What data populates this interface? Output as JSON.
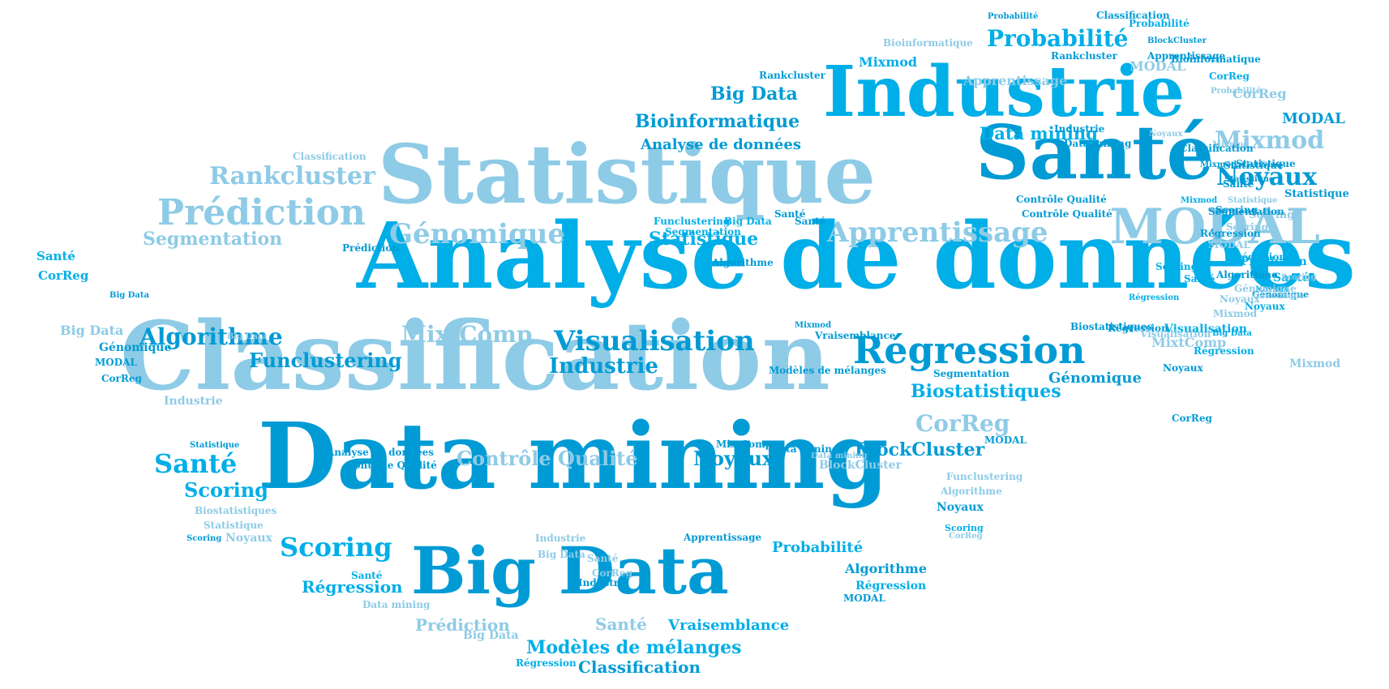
{
  "palette": {
    "light": "#8ecbe6",
    "mid": "#00aee8",
    "deep": "#009bd5",
    "bright": "#00b9f2"
  },
  "words": [
    {
      "text": "Analyse de données",
      "color": "mid"
    },
    {
      "text": "Classification",
      "color": "light"
    },
    {
      "text": "Data mining",
      "color": "deep"
    },
    {
      "text": "Statistique",
      "color": "light"
    },
    {
      "text": "Industrie",
      "color": "mid"
    },
    {
      "text": "Santé",
      "color": "deep"
    },
    {
      "text": "Big Data",
      "color": "deep"
    },
    {
      "text": "MODAL",
      "color": "light"
    },
    {
      "text": "Prédiction",
      "color": "light"
    },
    {
      "text": "Régression",
      "color": "deep"
    },
    {
      "text": "Génomique",
      "color": "light"
    },
    {
      "text": "Visualisation",
      "color": "deep"
    },
    {
      "text": "Apprentissage",
      "color": "light"
    },
    {
      "text": "Rankcluster",
      "color": "light"
    },
    {
      "text": "Probabilité",
      "color": "mid"
    },
    {
      "text": "Noyaux",
      "color": "deep"
    },
    {
      "text": "Mixmod",
      "color": "light"
    },
    {
      "text": "Algorithme",
      "color": "deep"
    },
    {
      "text": "MixtComp",
      "color": "light"
    },
    {
      "text": "Funclustering",
      "color": "deep"
    },
    {
      "text": "Industrie",
      "color": "deep"
    },
    {
      "text": "CorReg",
      "color": "light"
    },
    {
      "text": "Biostatistiques",
      "color": "mid"
    },
    {
      "text": "BlockCluster",
      "color": "deep"
    },
    {
      "text": "Scoring",
      "color": "mid"
    },
    {
      "text": "Santé",
      "color": "mid"
    },
    {
      "text": "Contrôle Qualité",
      "color": "light"
    },
    {
      "text": "Noyaux",
      "color": "deep"
    },
    {
      "text": "Scoring",
      "color": "mid"
    },
    {
      "text": "Segmentation",
      "color": "light"
    },
    {
      "text": "Statistique",
      "color": "mid"
    },
    {
      "text": "Bioinformatique",
      "color": "deep"
    },
    {
      "text": "Big Data",
      "color": "deep"
    },
    {
      "text": "Data mining",
      "color": "mid"
    },
    {
      "text": "Analyse de données",
      "color": "deep"
    },
    {
      "text": "Mixmod",
      "color": "mid"
    },
    {
      "text": "Modèles de mélanges",
      "color": "mid"
    },
    {
      "text": "Classification",
      "color": "deep"
    },
    {
      "text": "Vraisemblance",
      "color": "mid"
    },
    {
      "text": "Probabilité",
      "color": "mid"
    },
    {
      "text": "Régression",
      "color": "mid"
    },
    {
      "text": "Prédiction",
      "color": "light"
    },
    {
      "text": "Santé",
      "color": "light"
    },
    {
      "text": "Génomique",
      "color": "deep"
    },
    {
      "text": "MixtComp",
      "color": "light"
    },
    {
      "text": "Algorithme",
      "color": "deep"
    },
    {
      "text": "MODAL",
      "color": "light"
    },
    {
      "text": "Apprentissage",
      "color": "light"
    },
    {
      "text": "Bioinformatique",
      "color": "light"
    },
    {
      "text": "Rankcluster",
      "color": "deep"
    },
    {
      "text": "Big Data",
      "color": "light"
    },
    {
      "text": "CorReg",
      "color": "light"
    },
    {
      "text": "Scoring",
      "color": "light"
    },
    {
      "text": "Segmentation",
      "color": "mid"
    },
    {
      "text": "Statistique",
      "color": "deep"
    },
    {
      "text": "Visualisation",
      "color": "mid"
    },
    {
      "text": "Prédiction",
      "color": "mid"
    },
    {
      "text": "Biostatistiques",
      "color": "deep"
    },
    {
      "text": "Santé",
      "color": "mid"
    },
    {
      "text": "Noyaux",
      "color": "mid"
    },
    {
      "text": "Contrôle Qualité",
      "color": "deep"
    },
    {
      "text": "Classification",
      "color": "deep"
    },
    {
      "text": "Régression",
      "color": "deep"
    },
    {
      "text": "Algorithme",
      "color": "deep"
    },
    {
      "text": "Industrie",
      "color": "light"
    },
    {
      "text": "MODAL",
      "color": "deep"
    },
    {
      "text": "Mixmod",
      "color": "light"
    },
    {
      "text": "Santé",
      "color": "mid"
    },
    {
      "text": "CorReg",
      "color": "mid"
    },
    {
      "text": "Génomique",
      "color": "deep"
    },
    {
      "text": "Statistique",
      "color": "light"
    },
    {
      "text": "Vraisemblance",
      "color": "deep"
    },
    {
      "text": "BlockCluster",
      "color": "light"
    },
    {
      "text": "Funclustering",
      "color": "light"
    },
    {
      "text": "Algorithme",
      "color": "light"
    },
    {
      "text": "Noyaux",
      "color": "deep"
    },
    {
      "text": "Scoring",
      "color": "mid"
    },
    {
      "text": "Probabilité",
      "color": "mid"
    },
    {
      "text": "Data mining",
      "color": "light"
    },
    {
      "text": "Big Data",
      "color": "light"
    },
    {
      "text": "MixtComp",
      "color": "deep"
    },
    {
      "text": "Régression",
      "color": "mid"
    },
    {
      "text": "Industrie",
      "color": "deep"
    },
    {
      "text": "MODAL",
      "color": "deep"
    },
    {
      "text": "Santé",
      "color": "deep"
    },
    {
      "text": "Modèles de mélanges",
      "color": "deep"
    },
    {
      "text": "Mixmod",
      "color": "deep"
    },
    {
      "text": "Probabilité",
      "color": "deep"
    },
    {
      "text": "CorReg",
      "color": "light"
    },
    {
      "text": "Noyaux",
      "color": "light"
    },
    {
      "text": "Scoring",
      "color": "deep"
    },
    {
      "text": "MODAL",
      "color": "deep"
    },
    {
      "text": "Big Data",
      "color": "light"
    },
    {
      "text": "Mixmod",
      "color": "light"
    },
    {
      "text": "Segmentation",
      "color": "deep"
    },
    {
      "text": "Santé",
      "color": "mid"
    },
    {
      "text": "Noyaux",
      "color": "mid"
    },
    {
      "text": "Régression",
      "color": "mid"
    },
    {
      "text": "Big Data",
      "color": "deep"
    },
    {
      "text": "Génomique",
      "color": "deep"
    },
    {
      "text": "CorReg",
      "color": "deep"
    },
    {
      "text": "MODAL",
      "color": "deep"
    },
    {
      "text": "Régression",
      "color": "mid"
    },
    {
      "text": "Analyse de données",
      "color": "deep"
    },
    {
      "text": "Contrôle Qualité",
      "color": "deep"
    },
    {
      "text": "Statistique",
      "color": "light"
    },
    {
      "text": "Biostatistiques",
      "color": "light"
    },
    {
      "text": "Industrie",
      "color": "light"
    },
    {
      "text": "Apprentissage",
      "color": "deep"
    },
    {
      "text": "Data mining",
      "color": "light"
    },
    {
      "text": "Santé",
      "color": "light"
    },
    {
      "text": "CorReg",
      "color": "light"
    },
    {
      "text": "Big Data",
      "color": "light"
    },
    {
      "text": "Statistique",
      "color": "deep"
    },
    {
      "text": "Funclustering",
      "color": "mid"
    },
    {
      "text": "Big Data",
      "color": "mid"
    },
    {
      "text": "Santé",
      "color": "deep"
    },
    {
      "text": "Classification",
      "color": "light"
    },
    {
      "text": "Contrôle Qualité",
      "color": "deep"
    },
    {
      "text": "Scoring",
      "color": "light"
    },
    {
      "text": "Statistique",
      "color": "deep"
    },
    {
      "text": "Prédiction",
      "color": "deep"
    },
    {
      "text": "Génomique",
      "color": "light"
    },
    {
      "text": "Noyaux",
      "color": "light"
    },
    {
      "text": "Mixmod",
      "color": "mid"
    },
    {
      "text": "CorReg",
      "color": "deep"
    },
    {
      "text": "Scoring",
      "color": "mid"
    },
    {
      "text": "Santé",
      "color": "mid"
    },
    {
      "text": "Data mining",
      "color": "deep"
    },
    {
      "text": "Noyaux",
      "color": "deep"
    },
    {
      "text": "Régression",
      "color": "mid"
    },
    {
      "text": "Big Data",
      "color": "mid"
    },
    {
      "text": "Statistique",
      "color": "deep"
    },
    {
      "text": "Classification",
      "color": "deep"
    },
    {
      "text": "Rankcluster",
      "color": "deep"
    },
    {
      "text": "Scoring",
      "color": "deep"
    },
    {
      "text": "Mixmod",
      "color": "deep"
    },
    {
      "text": "CorReg",
      "color": "mid"
    },
    {
      "text": "BlockCluster",
      "color": "deep"
    },
    {
      "text": "Probabilité",
      "color": "light"
    },
    {
      "text": "Apprentissage",
      "color": "deep"
    },
    {
      "text": "Bioinformatique",
      "color": "deep"
    },
    {
      "text": "Statistique",
      "color": "deep"
    },
    {
      "text": "Scoring",
      "color": "light"
    },
    {
      "text": "Génomique",
      "color": "light"
    },
    {
      "text": "Noyaux",
      "color": "light"
    },
    {
      "text": "Mixmod",
      "color": "light"
    },
    {
      "text": "Prédiction",
      "color": "mid"
    },
    {
      "text": "Algorithme",
      "color": "deep"
    },
    {
      "text": "Industrie",
      "color": "deep"
    },
    {
      "text": "Data mining",
      "color": "deep"
    },
    {
      "text": "Visualisation",
      "color": "light"
    },
    {
      "text": "MODAL",
      "color": "light"
    },
    {
      "text": "Segmentation",
      "color": "deep"
    },
    {
      "text": "Santé",
      "color": "deep"
    },
    {
      "text": "Régression",
      "color": "deep"
    }
  ]
}
